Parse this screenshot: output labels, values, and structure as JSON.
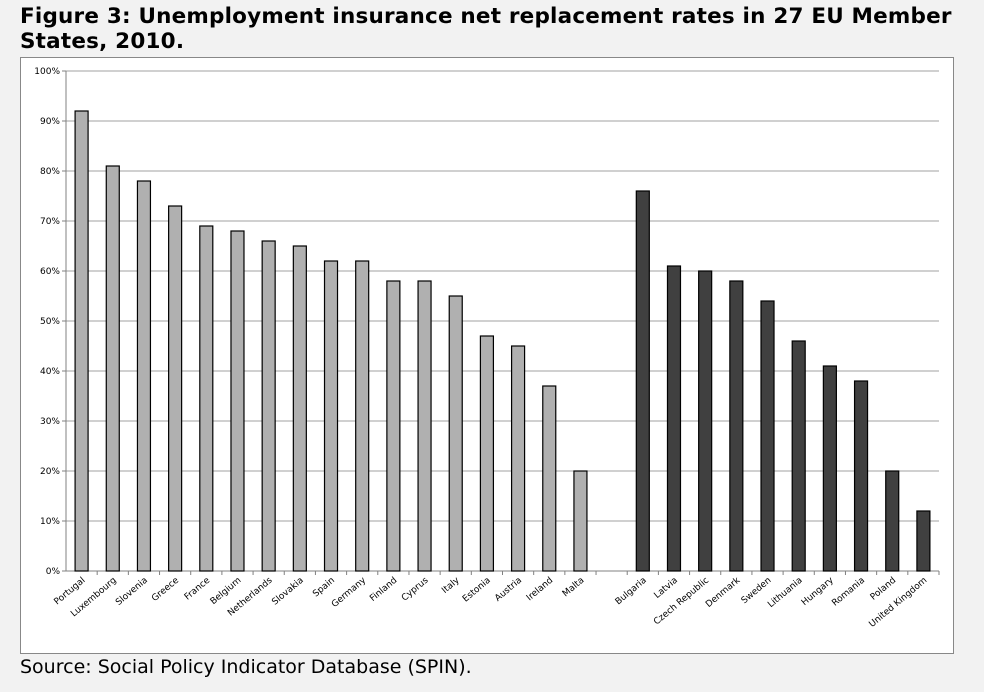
{
  "title": "Figure 3: Unemployment insurance net replacement rates in 27 EU Member States, 2010.",
  "source": "Source: Social Policy Indicator Database (SPIN).",
  "colors": {
    "group_a": "#b0b0b0",
    "group_b": "#404040",
    "gridline": "#a0a0a0",
    "axis": "#808080"
  },
  "chart_data": {
    "type": "bar",
    "title": "",
    "xlabel": "",
    "ylabel": "",
    "ylim": [
      0,
      100
    ],
    "yticks": [
      "0%",
      "10%",
      "20%",
      "30%",
      "40%",
      "50%",
      "60%",
      "70%",
      "80%",
      "90%",
      "100%"
    ],
    "grid": true,
    "series": [
      {
        "categories": [
          "Portugal",
          "Luxembourg",
          "Slovenia",
          "Greece",
          "France",
          "Belgium",
          "Netherlands",
          "Slovakia",
          "Spain",
          "Germany",
          "Finland",
          "Cyprus",
          "Italy",
          "Estonia",
          "Austria",
          "Ireland",
          "Malta"
        ],
        "values": [
          92,
          81,
          78,
          73,
          69,
          68,
          66,
          65,
          62,
          62,
          58,
          58,
          55,
          47,
          45,
          37,
          20
        ],
        "color": "#b0b0b0"
      },
      {
        "categories": [
          "Bulgaria",
          "Latvia",
          "Czech Republic",
          "Denmark",
          "Sweden",
          "Lithuania",
          "Hungary",
          "Romania",
          "Poland",
          "United Kingdom"
        ],
        "values": [
          76,
          61,
          60,
          58,
          54,
          46,
          41,
          38,
          20,
          12
        ],
        "color": "#404040"
      }
    ]
  }
}
